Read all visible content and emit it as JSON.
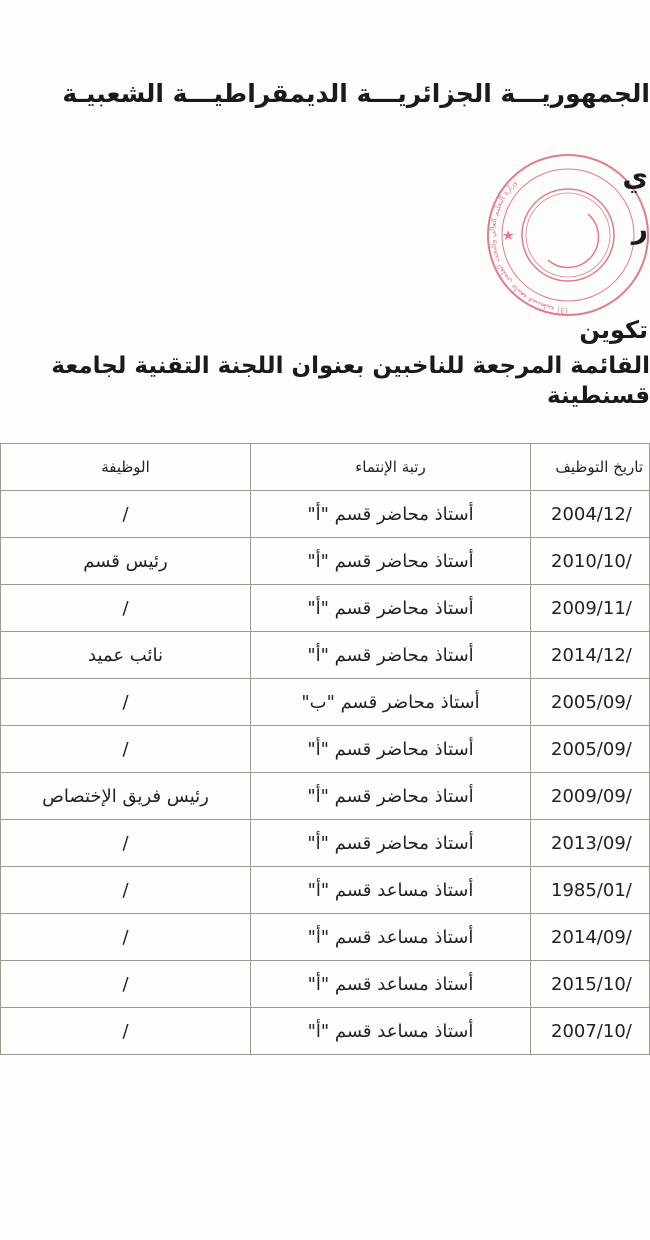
{
  "header": {
    "republic": "الجمهوريـــة الجزائريـــة الديمقراطيـــة الشعبيـة",
    "fragment_1": "ي",
    "fragment_2": "ر",
    "fragment_3": "تكوين",
    "title": "القائمة المرجعة للناخبين بعنوان اللجنة التقنية لجامعة قسنطينة"
  },
  "stamp": {
    "text": "وزارة التعليم العالي والبحث العلمي جامعة قسنطينة (3)",
    "color": "#d9506a"
  },
  "table": {
    "columns": [
      "تاريخ التوظيف",
      "رتبة الإنتماء",
      "الوظيفة"
    ],
    "rows": [
      {
        "date": "2004/12/",
        "rank": "أستاذ محاضر قسم \"أ\"",
        "function": "/"
      },
      {
        "date": "2010/10/",
        "rank": "أستاذ محاضر قسم \"أ\"",
        "function": "رئيس قسم"
      },
      {
        "date": "2009/11/",
        "rank": "أستاذ محاضر قسم \"أ\"",
        "function": "/"
      },
      {
        "date": "2014/12/",
        "rank": "أستاذ محاضر قسم \"أ\"",
        "function": "نائب عميد"
      },
      {
        "date": "2005/09/",
        "rank": "أستاذ محاضر قسم \"ب\"",
        "function": "/"
      },
      {
        "date": "2005/09/",
        "rank": "أستاذ محاضر قسم \"أ\"",
        "function": "/"
      },
      {
        "date": "2009/09/",
        "rank": "أستاذ محاضر قسم \"أ\"",
        "function": "رئيس فريق الإختصاص"
      },
      {
        "date": "2013/09/",
        "rank": "أستاذ محاضر قسم \"أ\"",
        "function": "/"
      },
      {
        "date": "1985/01/",
        "rank": "أستاذ مساعد قسم \"أ\"",
        "function": "/"
      },
      {
        "date": "2014/09/",
        "rank": "أستاذ مساعد قسم \"أ\"",
        "function": "/"
      },
      {
        "date": "2015/10/",
        "rank": "أستاذ مساعد قسم \"أ\"",
        "function": "/"
      },
      {
        "date": "2007/10/",
        "rank": "أستاذ مساعد قسم \"أ\"",
        "function": "/"
      }
    ]
  }
}
